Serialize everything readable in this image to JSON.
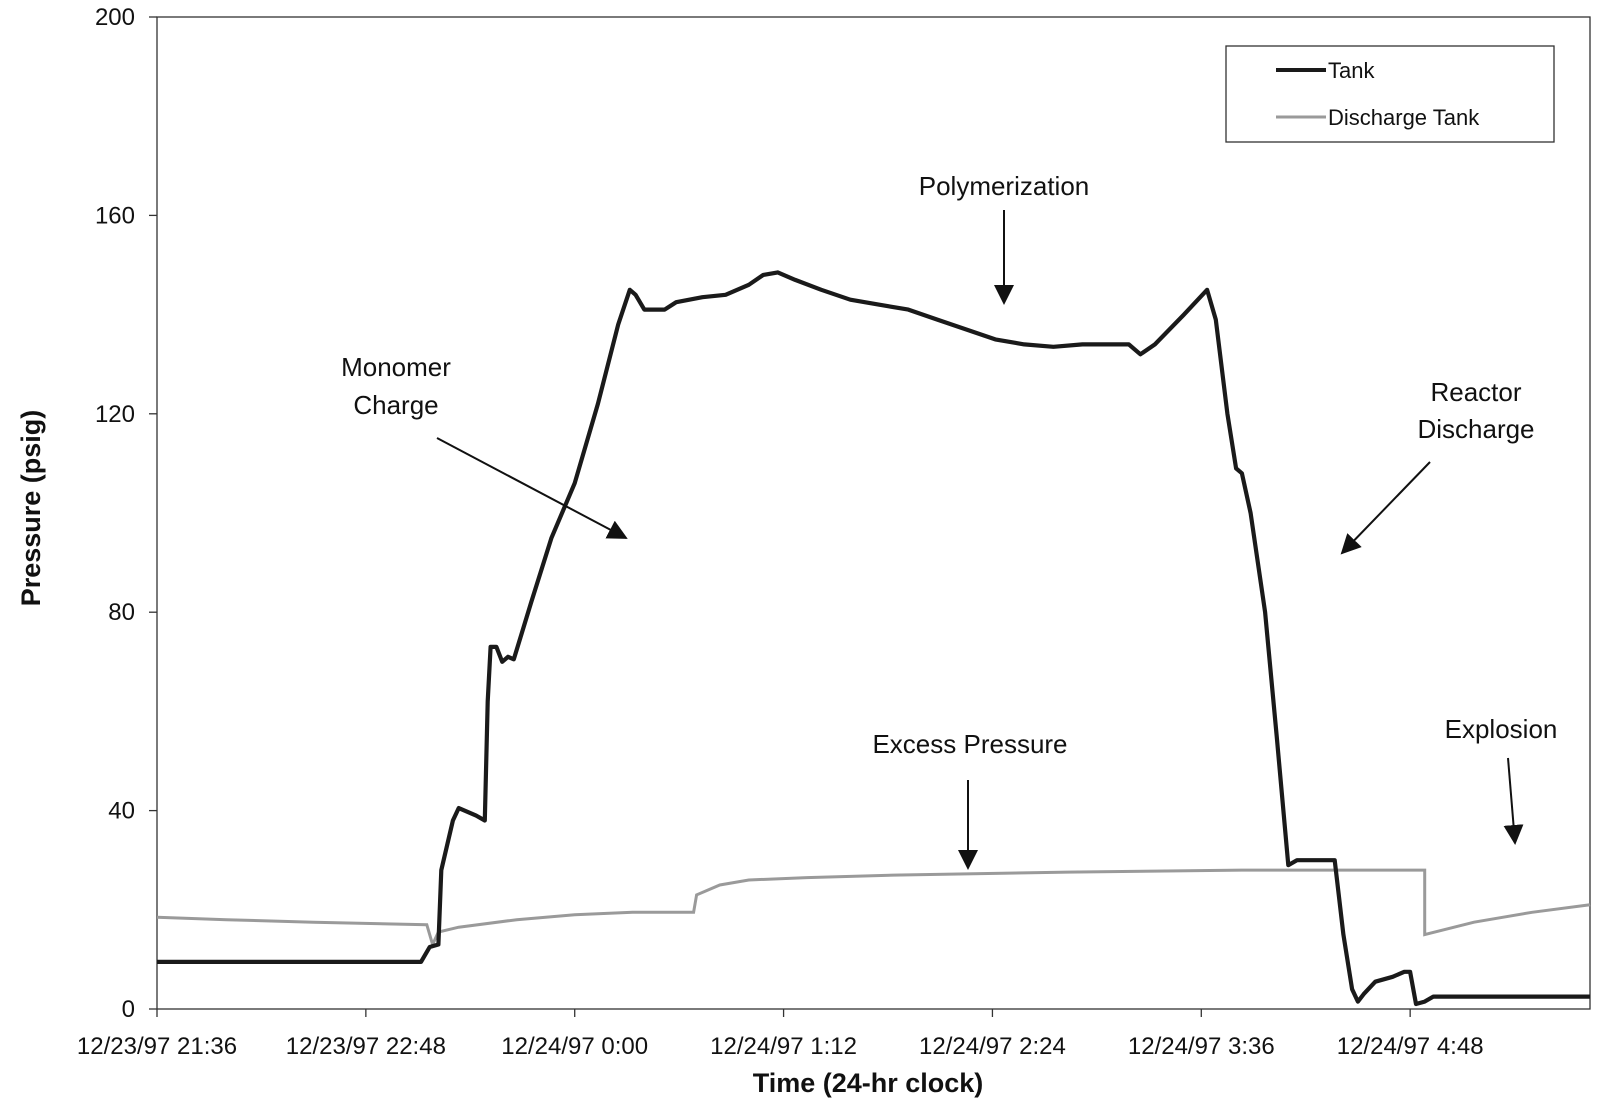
{
  "chart_data": {
    "type": "line",
    "title": "",
    "xlabel": "Time (24-hr clock)",
    "ylabel": "Pressure (psig)",
    "x_unit": "time",
    "xlim": [
      "12/23/97 21:36",
      "12/24/97 5:50"
    ],
    "ylim": [
      0,
      200
    ],
    "y_ticks": [
      0,
      40,
      80,
      120,
      160,
      200
    ],
    "x_ticks": [
      "12/23/97 21:36",
      "12/23/97 22:48",
      "12/24/97 0:00",
      "12/24/97 1:12",
      "12/24/97 2:24",
      "12/24/97 3:36",
      "12/24/97 4:48"
    ],
    "grid": false,
    "legend_position": "top-right",
    "legend": [
      {
        "label": "Tank",
        "color": "#1a1a1a",
        "style": "thick"
      },
      {
        "label": "Discharge Tank",
        "color": "#9a9a9a",
        "style": "thin"
      }
    ],
    "series": [
      {
        "name": "Tank",
        "color": "#1a1a1a",
        "points": [
          [
            "12/23/97 21:36",
            9.5
          ],
          [
            "12/23/97 23:07",
            9.5
          ],
          [
            "12/23/97 23:10",
            12.5
          ],
          [
            "12/23/97 23:13",
            13
          ],
          [
            "12/23/97 23:14",
            28
          ],
          [
            "12/23/97 23:18",
            38
          ],
          [
            "12/23/97 23:20",
            40.5
          ],
          [
            "12/23/97 23:26",
            39
          ],
          [
            "12/23/97 23:29",
            38
          ],
          [
            "12/23/97 23:30",
            62
          ],
          [
            "12/23/97 23:31",
            73
          ],
          [
            "12/23/97 23:33",
            73
          ],
          [
            "12/23/97 23:35",
            70
          ],
          [
            "12/23/97 23:37",
            71
          ],
          [
            "12/23/97 23:39",
            70.5
          ],
          [
            "12/23/97 23:45",
            82
          ],
          [
            "12/23/97 23:52",
            95
          ],
          [
            "12/24/97 0:00",
            106
          ],
          [
            "12/24/97 0:08",
            122
          ],
          [
            "12/24/97 0:15",
            138
          ],
          [
            "12/24/97 0:19",
            145
          ],
          [
            "12/24/97 0:21",
            144
          ],
          [
            "12/24/97 0:24",
            141
          ],
          [
            "12/24/97 0:31",
            141
          ],
          [
            "12/24/97 0:35",
            142.5
          ],
          [
            "12/24/97 0:44",
            143.5
          ],
          [
            "12/24/97 0:52",
            144
          ],
          [
            "12/24/97 1:00",
            146
          ],
          [
            "12/24/97 1:05",
            148
          ],
          [
            "12/24/97 1:10",
            148.5
          ],
          [
            "12/24/97 1:16",
            147
          ],
          [
            "12/24/97 1:25",
            145
          ],
          [
            "12/24/97 1:35",
            143
          ],
          [
            "12/24/97 1:45",
            142
          ],
          [
            "12/24/97 1:55",
            141
          ],
          [
            "12/24/97 2:05",
            139
          ],
          [
            "12/24/97 2:15",
            137
          ],
          [
            "12/24/97 2:25",
            135
          ],
          [
            "12/24/97 2:35",
            134
          ],
          [
            "12/24/97 2:45",
            133.5
          ],
          [
            "12/24/97 2:55",
            134
          ],
          [
            "12/24/97 3:05",
            134
          ],
          [
            "12/24/97 3:11",
            134
          ],
          [
            "12/24/97 3:15",
            132
          ],
          [
            "12/24/97 3:20",
            134
          ],
          [
            "12/24/97 3:30",
            140
          ],
          [
            "12/24/97 3:38",
            145
          ],
          [
            "12/24/97 3:41",
            139
          ],
          [
            "12/24/97 3:45",
            120
          ],
          [
            "12/24/97 3:48",
            109
          ],
          [
            "12/24/97 3:50",
            108
          ],
          [
            "12/24/97 3:53",
            100
          ],
          [
            "12/24/97 3:58",
            80
          ],
          [
            "12/24/97 4:02",
            55
          ],
          [
            "12/24/97 4:06",
            29
          ],
          [
            "12/24/97 4:09",
            30
          ],
          [
            "12/24/97 4:22",
            30
          ],
          [
            "12/24/97 4:25",
            15
          ],
          [
            "12/24/97 4:28",
            4
          ],
          [
            "12/24/97 4:30",
            1.5
          ],
          [
            "12/24/97 4:32",
            3
          ],
          [
            "12/24/97 4:36",
            5.5
          ],
          [
            "12/24/97 4:42",
            6.5
          ],
          [
            "12/24/97 4:46",
            7.5
          ],
          [
            "12/24/97 4:48",
            7.5
          ],
          [
            "12/24/97 4:50",
            1
          ],
          [
            "12/24/97 4:53",
            1.5
          ],
          [
            "12/24/97 4:56",
            2.5
          ],
          [
            "12/24/97 5:50",
            2.5
          ]
        ]
      },
      {
        "name": "Discharge Tank",
        "color": "#9a9a9a",
        "points": [
          [
            "12/23/97 21:36",
            18.5
          ],
          [
            "12/23/97 22:00",
            18
          ],
          [
            "12/23/97 22:30",
            17.5
          ],
          [
            "12/23/97 23:09",
            17
          ],
          [
            "12/23/97 23:11",
            13
          ],
          [
            "12/23/97 23:13",
            15.5
          ],
          [
            "12/23/97 23:20",
            16.5
          ],
          [
            "12/23/97 23:40",
            18
          ],
          [
            "12/24/97 0:00",
            19
          ],
          [
            "12/24/97 0:20",
            19.5
          ],
          [
            "12/24/97 0:41",
            19.5
          ],
          [
            "12/24/97 0:42",
            23
          ],
          [
            "12/24/97 0:50",
            25
          ],
          [
            "12/24/97 1:00",
            26
          ],
          [
            "12/24/97 1:20",
            26.5
          ],
          [
            "12/24/97 1:50",
            27
          ],
          [
            "12/24/97 2:20",
            27.3
          ],
          [
            "12/24/97 2:50",
            27.6
          ],
          [
            "12/24/97 3:20",
            27.8
          ],
          [
            "12/24/97 3:50",
            28
          ],
          [
            "12/24/97 4:20",
            28
          ],
          [
            "12/24/97 4:53",
            28
          ],
          [
            "12/24/97 4:53",
            15
          ],
          [
            "12/24/97 5:10",
            17.5
          ],
          [
            "12/24/97 5:30",
            19.5
          ],
          [
            "12/24/97 5:50",
            21
          ]
        ]
      }
    ],
    "annotations": [
      {
        "id": "polymerization",
        "lines": [
          "Polymerization"
        ]
      },
      {
        "id": "monomer-charge",
        "lines": [
          "Monomer",
          "Charge"
        ]
      },
      {
        "id": "reactor-discharge",
        "lines": [
          "Reactor",
          "Discharge"
        ]
      },
      {
        "id": "excess-pressure",
        "lines": [
          "Excess Pressure"
        ]
      },
      {
        "id": "explosion",
        "lines": [
          "Explosion"
        ]
      }
    ]
  }
}
